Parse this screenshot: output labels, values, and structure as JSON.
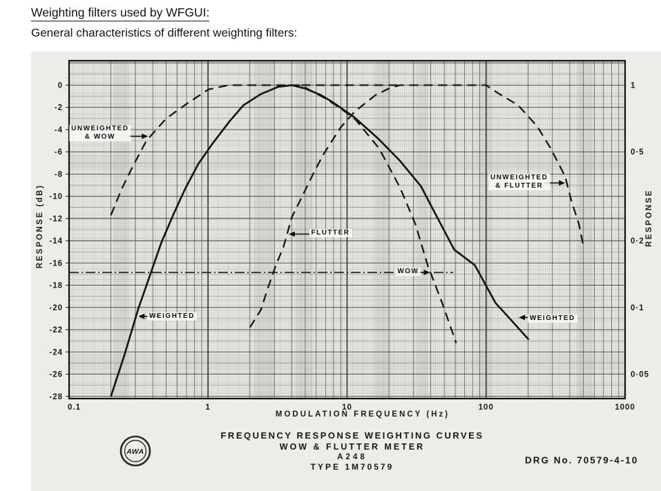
{
  "page": {
    "title": "Weighting filters used by WFGUI:",
    "subtitle": "General characteristics of different weighting filters:"
  },
  "figure": {
    "caption_line1": "FREQUENCY RESPONSE WEIGHTING CURVES",
    "caption_line2": "WOW & FLUTTER METER",
    "caption_line3": "A248",
    "caption_line4": "TYPE 1M70579",
    "drg_no": "DRG No. 70579-4-10",
    "logo_text": "AWA"
  },
  "chart_data": {
    "type": "line",
    "title": "FREQUENCY RESPONSE WEIGHTING CURVES",
    "xlabel": "MODULATION FREQUENCY (Hz)",
    "ylabel_left": "RESPONSE (dB)",
    "ylabel_right": "RESPONSE",
    "x_scale": "log",
    "xlim": [
      0.1,
      1000
    ],
    "ylim_db": [
      -28,
      2
    ],
    "grid": "fine log-log graph paper",
    "x_ticks": [
      "0.1",
      "1",
      "10",
      "100",
      "1000"
    ],
    "y_ticks_db": [
      "0",
      "-2",
      "-4",
      "-6",
      "-8",
      "-10",
      "-12",
      "-14",
      "-16",
      "-18",
      "-20",
      "-22",
      "-24",
      "-26",
      "-28"
    ],
    "y_ticks_right": [
      {
        "label": "1",
        "db": 0
      },
      {
        "label": "0·5",
        "db": -6
      },
      {
        "label": "0·2",
        "db": -14
      },
      {
        "label": "0·1",
        "db": -20
      },
      {
        "label": "0·05",
        "db": -26
      }
    ],
    "series": [
      {
        "name": "UNWEIGHTED & WOW",
        "style": "dashed",
        "points": [
          [
            0.2,
            -11.7
          ],
          [
            0.24,
            -9.3
          ],
          [
            0.29,
            -7.2
          ],
          [
            0.36,
            -5.0
          ],
          [
            0.5,
            -3.0
          ],
          [
            0.68,
            -1.8
          ],
          [
            1.0,
            -0.4
          ],
          [
            1.4,
            0
          ],
          [
            4.7,
            0
          ],
          [
            5.3,
            -0.4
          ],
          [
            7,
            -1.2
          ],
          [
            9,
            -2.1
          ],
          [
            11.5,
            -3.1
          ],
          [
            17,
            -5.7
          ],
          [
            24,
            -9.2
          ],
          [
            31,
            -12.5
          ],
          [
            38,
            -16.2
          ],
          [
            48,
            -19.5
          ],
          [
            61,
            -23.2
          ]
        ]
      },
      {
        "name": "UNWEIGHTED (shared plateau)",
        "style": "dashed",
        "points": [
          [
            4.7,
            0
          ],
          [
            24,
            0
          ]
        ]
      },
      {
        "name": "UNWEIGHTED & FLUTTER",
        "style": "dashed",
        "points": [
          [
            2.0,
            -21.8
          ],
          [
            2.4,
            -20.2
          ],
          [
            2.7,
            -18.2
          ],
          [
            3.1,
            -16.1
          ],
          [
            3.5,
            -14.5
          ],
          [
            4.0,
            -11.9
          ],
          [
            5.7,
            -8.0
          ],
          [
            6.7,
            -6.3
          ],
          [
            9,
            -3.8
          ],
          [
            11.3,
            -2.4
          ],
          [
            16,
            -0.9
          ],
          [
            20,
            -0.3
          ],
          [
            24,
            0
          ],
          [
            100,
            0
          ],
          [
            121,
            -0.7
          ],
          [
            170,
            -1.8
          ],
          [
            233,
            -3.7
          ],
          [
            292,
            -5.7
          ],
          [
            370,
            -8.2
          ],
          [
            413,
            -10.5
          ],
          [
            465,
            -12.5
          ],
          [
            500,
            -14.4
          ]
        ]
      },
      {
        "name": "WEIGHTED",
        "style": "solid",
        "points": [
          [
            0.2,
            -28
          ],
          [
            0.25,
            -24.3
          ],
          [
            0.315,
            -20.1
          ],
          [
            0.37,
            -17.6
          ],
          [
            0.46,
            -14.2
          ],
          [
            0.56,
            -11.7
          ],
          [
            0.68,
            -9.4
          ],
          [
            0.85,
            -7.1
          ],
          [
            1.07,
            -5.3
          ],
          [
            1.44,
            -3.2
          ],
          [
            1.8,
            -1.8
          ],
          [
            2.4,
            -0.8
          ],
          [
            3.2,
            -0.15
          ],
          [
            4.0,
            0
          ],
          [
            5,
            -0.3
          ],
          [
            6.5,
            -0.9
          ],
          [
            7.8,
            -1.5
          ],
          [
            11.3,
            -2.9
          ],
          [
            16.7,
            -4.8
          ],
          [
            24,
            -6.8
          ],
          [
            34,
            -9.1
          ],
          [
            40,
            -10.8
          ],
          [
            59,
            -14.8
          ],
          [
            83,
            -16.2
          ],
          [
            117,
            -19.6
          ],
          [
            148,
            -21.0
          ],
          [
            203,
            -22.9
          ]
        ]
      }
    ],
    "annotations": [
      {
        "name": "unweighted-wow",
        "lines": [
          "UNWEIGHTED",
          "& WOW"
        ],
        "f": 0.167,
        "db": -4.3,
        "arrow": {
          "f": 0.37,
          "db": -4.6,
          "dir": "right"
        }
      },
      {
        "name": "flutter",
        "lines": [
          "FLUTTER"
        ],
        "f": 7.6,
        "db": -13.3,
        "arrow": {
          "f": 3.8,
          "db": -13.4,
          "dir": "left"
        }
      },
      {
        "name": "wow",
        "lines": [
          "WOW"
        ],
        "f": 27.5,
        "db": -16.8,
        "arrow": {
          "f": 39.5,
          "db": -16.85,
          "dir": "right"
        }
      },
      {
        "name": "unweighted-flutter",
        "lines": [
          "UNWEIGHTED",
          "& FLUTTER"
        ],
        "f": 173,
        "db": -8.7,
        "arrow": {
          "f": 370,
          "db": -8.8,
          "dir": "right"
        }
      },
      {
        "name": "weighted-left",
        "lines": [
          "WEIGHTED"
        ],
        "f": 0.55,
        "db": -20.8,
        "arrow": {
          "f": 0.315,
          "db": -20.8,
          "dir": "left"
        }
      },
      {
        "name": "weighted-right",
        "lines": [
          "WEIGHTED"
        ],
        "f": 300,
        "db": -21.0,
        "arrow": {
          "f": 172,
          "db": -20.9,
          "dir": "left"
        }
      }
    ],
    "wow_leader_line": {
      "db": -16.85,
      "f_start": 0.1,
      "f_end": 58
    }
  }
}
